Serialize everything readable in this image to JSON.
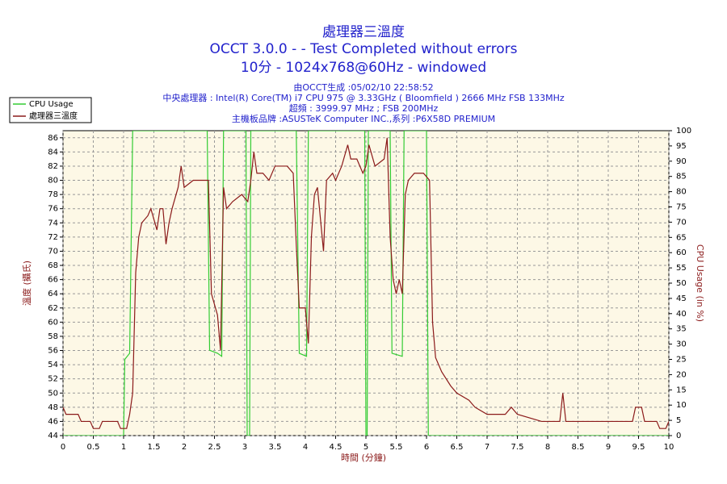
{
  "chart_data": {
    "type": "line",
    "title": "處理器三溫度",
    "subtitle": [
      "OCCT 3.0.0 -  - Test Completed without errors",
      "10分 - 1024x768@60Hz - windowed"
    ],
    "info": [
      "由OCCT生成 :05/02/10 22:58:52",
      "中央處理器 : Intel(R) Core(TM) i7 CPU 975 @ 3.33GHz ( Bloomfield ) 2666 MHz FSB 133MHz",
      "超頻 : 3999.97 MHz ; FSB 200MHz",
      "主機板品牌 :ASUSTeK Computer INC.,系列 :P6X58D PREMIUM"
    ],
    "xlabel": "時間 (分鐘)",
    "ylabel": "溫度 (攝氏)",
    "y2label": "CPU Usage (in %)",
    "xlim": [
      0,
      10
    ],
    "xticks": [
      0,
      0.5,
      1,
      1.5,
      2,
      2.5,
      3,
      3.5,
      4,
      4.5,
      5,
      5.5,
      6,
      6.5,
      7,
      7.5,
      8,
      8.5,
      9,
      9.5,
      10
    ],
    "ylim": [
      44,
      87
    ],
    "yticks": [
      44,
      46,
      48,
      50,
      52,
      54,
      56,
      58,
      60,
      62,
      64,
      66,
      68,
      70,
      72,
      74,
      76,
      78,
      80,
      82,
      84,
      86
    ],
    "y2lim": [
      0,
      100
    ],
    "y2ticks": [
      0,
      5,
      10,
      15,
      20,
      25,
      30,
      35,
      40,
      45,
      50,
      55,
      60,
      65,
      70,
      75,
      80,
      85,
      90,
      95,
      100
    ],
    "grid": true,
    "legend": "top-left",
    "series": [
      {
        "name": "CPU Usage",
        "color": "#33cc33",
        "axis": "y2",
        "x": [
          0,
          1.0,
          1.02,
          1.1,
          1.12,
          1.15,
          2.38,
          2.42,
          2.55,
          2.62,
          2.65,
          3.02,
          3.04,
          3.08,
          3.1,
          3.85,
          3.9,
          4.02,
          4.05,
          4.98,
          5.0,
          5.02,
          5.04,
          5.4,
          5.43,
          5.6,
          5.63,
          6.0,
          6.03,
          10
        ],
        "values": [
          0,
          0,
          25,
          27,
          56,
          100,
          100,
          28,
          27,
          26,
          100,
          100,
          0,
          0,
          100,
          100,
          27,
          26,
          100,
          100,
          0,
          0,
          100,
          100,
          27,
          26,
          100,
          100,
          0,
          0
        ]
      },
      {
        "name": "處理器三溫度",
        "color": "#8b1a1a",
        "axis": "y",
        "x": [
          0,
          0.05,
          0.25,
          0.3,
          0.45,
          0.5,
          0.6,
          0.65,
          0.9,
          0.95,
          1.05,
          1.1,
          1.15,
          1.2,
          1.25,
          1.3,
          1.4,
          1.45,
          1.55,
          1.6,
          1.65,
          1.7,
          1.75,
          1.8,
          1.9,
          1.95,
          2.0,
          2.15,
          2.4,
          2.45,
          2.55,
          2.6,
          2.65,
          2.7,
          2.8,
          2.95,
          3.05,
          3.1,
          3.15,
          3.2,
          3.3,
          3.4,
          3.5,
          3.7,
          3.8,
          3.85,
          3.9,
          4.0,
          4.05,
          4.1,
          4.15,
          4.2,
          4.3,
          4.35,
          4.45,
          4.5,
          4.6,
          4.7,
          4.75,
          4.85,
          4.95,
          5.0,
          5.05,
          5.15,
          5.3,
          5.35,
          5.4,
          5.45,
          5.5,
          5.55,
          5.6,
          5.65,
          5.7,
          5.8,
          5.95,
          6.05,
          6.1,
          6.15,
          6.25,
          6.4,
          6.5,
          6.7,
          6.8,
          7.0,
          7.3,
          7.4,
          7.5,
          7.9,
          8.2,
          8.25,
          8.3,
          9.4,
          9.45,
          9.55,
          9.6,
          9.8,
          9.85,
          9.95,
          10.0
        ],
        "values": [
          48,
          47,
          47,
          46,
          46,
          45,
          45,
          46,
          46,
          45,
          45,
          47,
          50,
          67,
          72,
          74,
          75,
          76,
          73,
          76,
          76,
          71,
          74,
          76,
          79,
          82,
          79,
          80,
          80,
          64,
          61,
          56,
          79,
          76,
          77,
          78,
          77,
          80,
          84,
          81,
          81,
          80,
          82,
          82,
          81,
          71,
          62,
          62,
          57,
          72,
          78,
          79,
          70,
          80,
          81,
          80,
          82,
          85,
          83,
          83,
          81,
          82,
          85,
          82,
          83,
          86,
          72,
          66,
          64,
          66,
          64,
          78,
          80,
          81,
          81,
          80,
          60,
          55,
          53,
          51,
          50,
          49,
          48,
          47,
          47,
          48,
          47,
          46,
          46,
          50,
          46,
          46,
          48,
          48,
          46,
          46,
          45,
          45,
          46
        ]
      }
    ]
  }
}
